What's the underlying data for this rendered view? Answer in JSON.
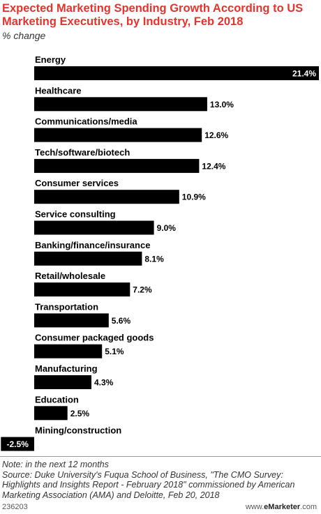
{
  "header": {
    "title": "Expected Marketing Spending Growth According to US Marketing Executives, by Industry, Feb 2018",
    "subtitle": "% change"
  },
  "chart_data": {
    "type": "bar",
    "orientation": "horizontal",
    "categories": [
      "Energy",
      "Healthcare",
      "Communications/media",
      "Tech/software/biotech",
      "Consumer services",
      "Service consulting",
      "Banking/finance/insurance",
      "Retail/wholesale",
      "Transportation",
      "Consumer packaged goods",
      "Manufacturing",
      "Education",
      "Mining/construction"
    ],
    "values": [
      21.4,
      13.0,
      12.6,
      12.4,
      10.9,
      9.0,
      8.1,
      7.2,
      5.6,
      5.1,
      4.3,
      2.5,
      -2.5
    ],
    "value_labels": [
      "21.4%",
      "13.0%",
      "12.6%",
      "12.4%",
      "10.9%",
      "9.0%",
      "8.1%",
      "7.2%",
      "5.6%",
      "5.1%",
      "4.3%",
      "2.5%",
      "-2.5%"
    ],
    "bar_color": "#000000",
    "grid": false,
    "legend": "none"
  },
  "footer": {
    "note": "Note: in the next 12 months",
    "source": "Source: Duke University's Fuqua School of Business, \"The CMO Survey: Highlights and Insights Report - February 2018\" commissioned by American Marketing Association (AMA) and Deloitte, Feb 20, 2018",
    "chart_id": "236203",
    "brand_prefix": "www.",
    "brand_name": "eMarketer",
    "brand_suffix": ".com"
  },
  "colors": {
    "title": "#e2352d",
    "bar": "#000000"
  }
}
